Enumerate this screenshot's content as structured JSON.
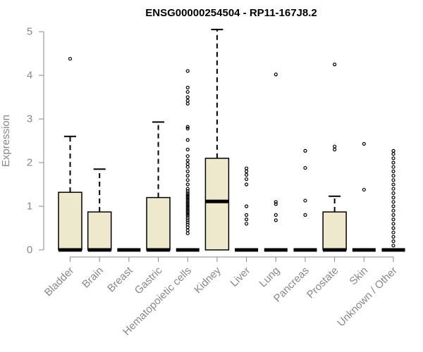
{
  "chart_data": {
    "type": "boxplot",
    "title": "ENSG00000254504 - RP11-167J8.2",
    "xlabel": "",
    "ylabel": "Expression",
    "ylim": [
      0,
      5
    ],
    "yticks": [
      0,
      1,
      2,
      3,
      4,
      5
    ],
    "grid": false,
    "legend": "none",
    "colors": {
      "box_fill": "#EEE8CD",
      "box_stroke": "#000000",
      "axis": "#888888"
    },
    "categories": [
      "Bladder",
      "Brain",
      "Breast",
      "Gastric",
      "Hematopoietic cells",
      "Kidney",
      "Liver",
      "Lung",
      "Pancreas",
      "Prostate",
      "Skin",
      "Unknown / Other"
    ],
    "boxes": [
      {
        "category": "Bladder",
        "min": 0,
        "q1": 0,
        "median": 0,
        "q3": 1.32,
        "max": 2.6,
        "outliers": [
          4.38
        ]
      },
      {
        "category": "Brain",
        "min": 0,
        "q1": 0,
        "median": 0,
        "q3": 0.87,
        "max": 1.85,
        "outliers": []
      },
      {
        "category": "Breast",
        "min": 0,
        "q1": 0,
        "median": 0,
        "q3": 0,
        "max": 0,
        "outliers": []
      },
      {
        "category": "Gastric",
        "min": 0,
        "q1": 0,
        "median": 0,
        "q3": 1.2,
        "max": 2.93,
        "outliers": []
      },
      {
        "category": "Hematopoietic cells",
        "min": 0,
        "q1": 0,
        "median": 0,
        "q3": 0,
        "max": 0,
        "outliers": [
          0.38,
          0.45,
          0.52,
          0.58,
          0.63,
          0.68,
          0.73,
          0.78,
          0.82,
          0.86,
          0.9,
          0.94,
          0.98,
          1.02,
          1.06,
          1.1,
          1.14,
          1.18,
          1.22,
          1.26,
          1.3,
          1.35,
          1.4,
          1.5,
          1.6,
          1.7,
          1.8,
          1.9,
          1.97,
          2.05,
          2.15,
          2.3,
          2.52,
          2.78,
          2.82,
          3.35,
          3.42,
          3.5,
          3.62,
          3.72,
          4.1
        ]
      },
      {
        "category": "Kidney",
        "min": 0,
        "q1": 0,
        "median": 1.11,
        "q3": 2.1,
        "max": 5.05,
        "outliers": []
      },
      {
        "category": "Liver",
        "min": 0,
        "q1": 0,
        "median": 0,
        "q3": 0,
        "max": 0,
        "outliers": [
          0.6,
          0.7,
          0.8,
          1.0,
          1.5,
          1.62,
          1.72,
          1.8,
          1.87
        ]
      },
      {
        "category": "Lung",
        "min": 0,
        "q1": 0,
        "median": 0,
        "q3": 0,
        "max": 0,
        "outliers": [
          0.68,
          0.8,
          1.05,
          1.1,
          4.02
        ]
      },
      {
        "category": "Pancreas",
        "min": 0,
        "q1": 0,
        "median": 0,
        "q3": 0,
        "max": 0,
        "outliers": [
          0.8,
          1.13,
          1.88,
          2.27
        ]
      },
      {
        "category": "Prostate",
        "min": 0,
        "q1": 0,
        "median": 0,
        "q3": 0.87,
        "max": 1.23,
        "outliers": [
          2.3,
          2.37,
          4.25
        ]
      },
      {
        "category": "Skin",
        "min": 0,
        "q1": 0,
        "median": 0,
        "q3": 0,
        "max": 0,
        "outliers": [
          1.38,
          2.43
        ]
      },
      {
        "category": "Unknown / Other",
        "min": 0,
        "q1": 0,
        "median": 0,
        "q3": 0,
        "max": 0,
        "outliers": [
          0.1,
          0.2,
          0.3,
          0.4,
          0.5,
          0.6,
          0.7,
          0.8,
          0.9,
          1.0,
          1.1,
          1.2,
          1.3,
          1.4,
          1.5,
          1.6,
          1.7,
          1.8,
          1.9,
          2.0,
          2.1,
          2.2,
          2.27
        ]
      }
    ]
  }
}
